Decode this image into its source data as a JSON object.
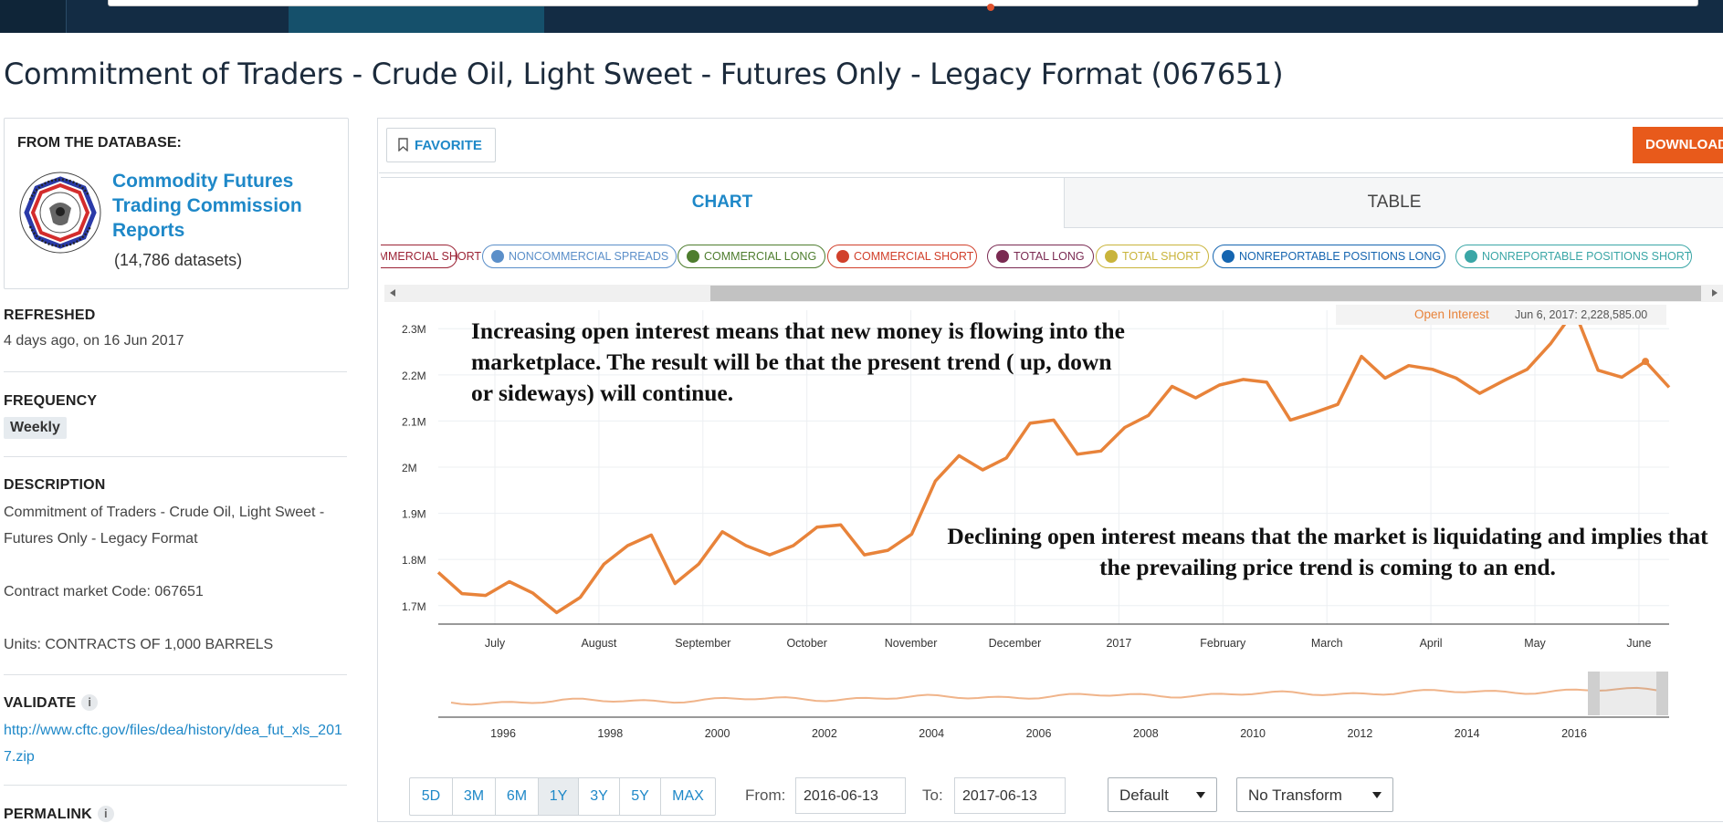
{
  "page_title": "Commitment of Traders - Crude Oil, Light Sweet - Futures Only - Legacy Format (067651)",
  "sidebar": {
    "from_label": "FROM THE DATABASE:",
    "db_name": "Commodity Futures Trading Commission Reports",
    "db_count": "(14,786 datasets)",
    "refreshed_label": "REFRESHED",
    "refreshed_value": "4 days ago, on 16 Jun 2017",
    "frequency_label": "FREQUENCY",
    "frequency_value": "Weekly",
    "description_label": "DESCRIPTION",
    "description_text": "Commitment of Traders - Crude Oil, Light Sweet - Futures Only - Legacy Format",
    "contract_code": "Contract market Code: 067651",
    "units": "Units: CONTRACTS OF 1,000 BARRELS",
    "validate_label": "VALIDATE",
    "validate_link": "http://www.cftc.gov/files/dea/history/dea_fut_xls_2017.zip",
    "permalink_label": "PERMALINK",
    "info_glyph": "i"
  },
  "toolbar": {
    "favorite_label": "FAVORITE",
    "download_label": "DOWNLOAD"
  },
  "tabs": {
    "chart": "CHART",
    "table": "TABLE"
  },
  "legend": [
    {
      "label": "NONCOMMERCIAL SHORT",
      "color": "#9b2335"
    },
    {
      "label": "NONCOMMERCIAL SPREADS",
      "color": "#5b8fc9"
    },
    {
      "label": "COMMERCIAL LONG",
      "color": "#4e7d2e"
    },
    {
      "label": "COMMERCIAL SHORT",
      "color": "#d1402b"
    },
    {
      "label": "TOTAL LONG",
      "color": "#7a2a52"
    },
    {
      "label": "TOTAL SHORT",
      "color": "#c9b43b"
    },
    {
      "label": "NONREPORTABLE POSITIONS LONG",
      "color": "#1565b0"
    },
    {
      "label": "NONREPORTABLE POSITIONS SHORT",
      "color": "#3aa6a6"
    }
  ],
  "annotations": {
    "increasing": "Increasing open interest means that new money is flowing into the marketplace. The result will be that the present trend ( up, down or sideways) will continue.",
    "declining": "Declining open interest means that the market is liquidating and implies that the prevailing price trend is coming to an end."
  },
  "tooltip": {
    "series": "Open Interest",
    "value": "Jun 6, 2017: 2,228,585.00"
  },
  "chart_data": {
    "type": "line",
    "series": [
      {
        "name": "Open Interest",
        "color": "#e8833a",
        "values": [
          1772000,
          1726000,
          1722000,
          1752000,
          1727000,
          1685000,
          1718000,
          1790000,
          1830000,
          1853000,
          1748000,
          1790000,
          1860000,
          1830000,
          1810000,
          1830000,
          1870000,
          1875000,
          1810000,
          1820000,
          1855000,
          1970000,
          2025000,
          1994000,
          2020000,
          2095000,
          2102000,
          2028000,
          2035000,
          2086000,
          2112000,
          2175000,
          2150000,
          2178000,
          2190000,
          2184000,
          2102000,
          2118000,
          2136000,
          2240000,
          2193000,
          2220000,
          2212000,
          2193000,
          2160000,
          2187000,
          2212000,
          2268000,
          2339000,
          2210000,
          2195000,
          2229000,
          2173000
        ]
      }
    ],
    "x_range": [
      "2016-06-14",
      "2017-06-13"
    ],
    "x_tick_labels": [
      "July",
      "August",
      "September",
      "October",
      "November",
      "December",
      "2017",
      "February",
      "March",
      "April",
      "May",
      "June"
    ],
    "y_tick_labels": [
      "1.7M",
      "1.8M",
      "1.9M",
      "2M",
      "2.1M",
      "2.2M",
      "2.3M"
    ],
    "ylim": [
      1660000,
      2340000
    ],
    "navigator": {
      "tick_labels": [
        "1996",
        "1998",
        "2000",
        "2002",
        "2004",
        "2006",
        "2008",
        "2010",
        "2012",
        "2014",
        "2016"
      ]
    }
  },
  "controls": {
    "ranges": [
      "5D",
      "3M",
      "6M",
      "1Y",
      "3Y",
      "5Y",
      "MAX"
    ],
    "active_range": "1Y",
    "from_label": "From:",
    "from_value": "2016-06-13",
    "to_label": "To:",
    "to_value": "2017-06-13",
    "frequency_select": "Default",
    "transform_select": "No Transform"
  }
}
